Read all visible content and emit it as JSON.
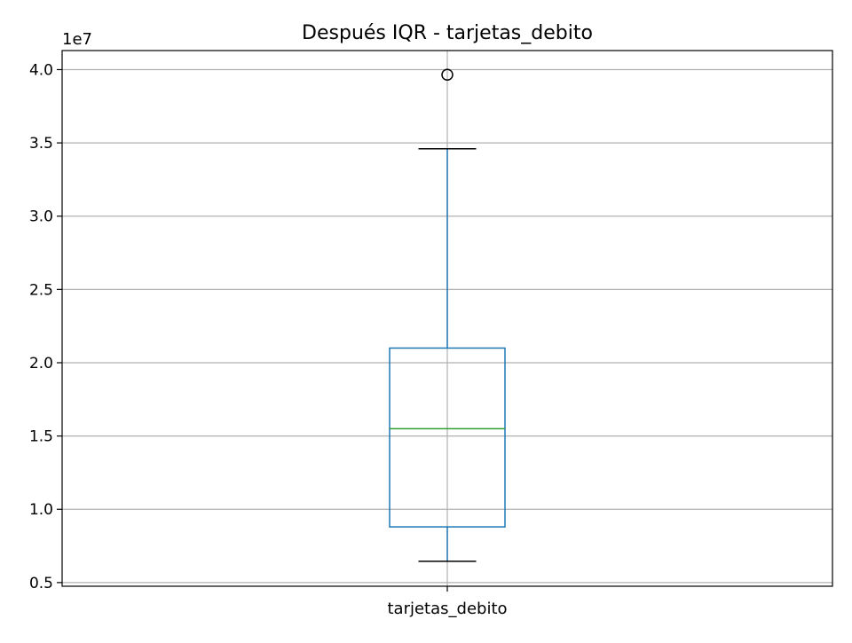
{
  "chart_data": {
    "type": "box",
    "title": "Después IQR - tarjetas_debito",
    "categories": [
      "tarjetas_debito"
    ],
    "y_multiplier_label": "1e7",
    "y_ticks": [
      {
        "value": 5000000,
        "label": "0.5"
      },
      {
        "value": 10000000,
        "label": "1.0"
      },
      {
        "value": 15000000,
        "label": "1.5"
      },
      {
        "value": 20000000,
        "label": "2.0"
      },
      {
        "value": 25000000,
        "label": "2.5"
      },
      {
        "value": 30000000,
        "label": "3.0"
      },
      {
        "value": 35000000,
        "label": "3.5"
      },
      {
        "value": 40000000,
        "label": "4.0"
      }
    ],
    "ylim": [
      4750000,
      41300000
    ],
    "grid": true,
    "boxes": [
      {
        "category": "tarjetas_debito",
        "whisker_low": 6450000,
        "q1": 8800000,
        "median": 15500000,
        "q3": 21000000,
        "whisker_high": 34600000,
        "outliers": [
          39650000
        ]
      }
    ],
    "colors": {
      "box": "#1f77b4",
      "median": "#2ca02c",
      "whisker_cap": "#000000",
      "grid": "#b0b0b0",
      "outlier_edge": "#000000"
    }
  }
}
